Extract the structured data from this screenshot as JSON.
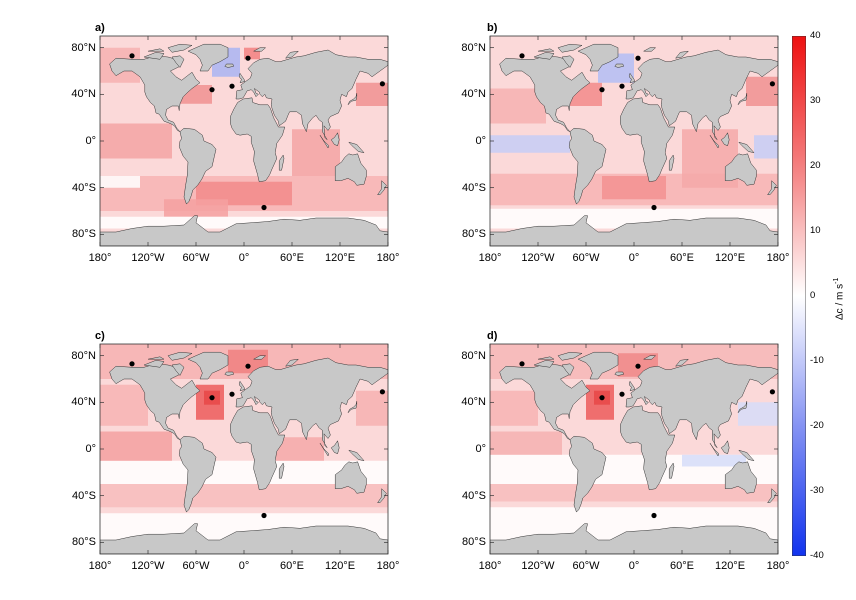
{
  "panels": [
    {
      "label": "a)",
      "sites_variant": "a"
    },
    {
      "label": "b)",
      "sites_variant": "b"
    },
    {
      "label": "c)",
      "sites_variant": "c"
    },
    {
      "label": "d)",
      "sites_variant": "d"
    }
  ],
  "axes": {
    "lat_ticks": [
      "80°N",
      "40°N",
      "0°",
      "40°S",
      "80°S"
    ],
    "lon_ticks": [
      "180°",
      "120°W",
      "60°W",
      "0°",
      "60°E",
      "120°E",
      "180°"
    ],
    "lat_values": [
      80,
      40,
      0,
      -40,
      -80
    ],
    "lon_values": [
      -180,
      -120,
      -60,
      0,
      60,
      120,
      180
    ],
    "lat_range": [
      -90,
      90
    ],
    "lon_range": [
      -180,
      180
    ]
  },
  "colorbar": {
    "label": "Δc / m s",
    "label_exponent": "-1",
    "ticks": [
      "40",
      "30",
      "20",
      "10",
      "0",
      "-10",
      "-20",
      "-30",
      "-40"
    ],
    "tick_values": [
      40,
      30,
      20,
      10,
      0,
      -10,
      -20,
      -30,
      -40
    ],
    "range": [
      -40,
      40
    ],
    "colors": {
      "max": "#ee1111",
      "zero": "#ffffff",
      "min": "#1133ee"
    }
  },
  "sites": [
    {
      "lon": -140,
      "lat": 73
    },
    {
      "lon": -40,
      "lat": 44
    },
    {
      "lon": -15,
      "lat": 47
    },
    {
      "lon": 5,
      "lat": 71
    },
    {
      "lon": 25,
      "lat": -57
    },
    {
      "lon": 173,
      "lat": 49
    }
  ],
  "land_color": "#c8c8c8",
  "ocean_base_color": "#fbd9d9"
}
